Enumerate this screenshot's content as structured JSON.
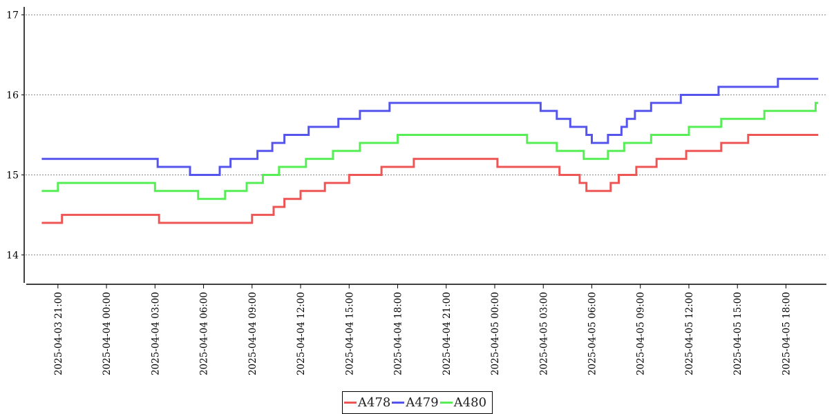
{
  "chart_data": {
    "type": "line",
    "title": "",
    "xlabel": "",
    "ylabel": "",
    "ylim": [
      13.65,
      17.1
    ],
    "xlim": [
      "2025-04-03 19:00",
      "2025-04-05 20:30"
    ],
    "y_ticks": [
      "14",
      "15",
      "16",
      "17"
    ],
    "x_ticks": [
      "2025-04-03 21:00",
      "2025-04-04 00:00",
      "2025-04-04 03:00",
      "2025-04-04 06:00",
      "2025-04-04 09:00",
      "2025-04-04 12:00",
      "2025-04-04 15:00",
      "2025-04-04 18:00",
      "2025-04-04 21:00",
      "2025-04-05 00:00",
      "2025-04-05 03:00",
      "2025-04-05 06:00",
      "2025-04-05 09:00",
      "2025-04-05 12:00",
      "2025-04-05 15:00",
      "2025-04-05 18:00"
    ],
    "grid": "horizontal dotted",
    "legend_position": "bottom-center",
    "series": [
      {
        "name": "A478",
        "color": "#ee5555",
        "points": [
          [
            "2025-04-03 20:00",
            14.4
          ],
          [
            "2025-04-03 21:15",
            14.5
          ],
          [
            "2025-04-04 03:15",
            14.4
          ],
          [
            "2025-04-04 09:00",
            14.5
          ],
          [
            "2025-04-04 10:20",
            14.6
          ],
          [
            "2025-04-04 11:00",
            14.7
          ],
          [
            "2025-04-04 12:00",
            14.8
          ],
          [
            "2025-04-04 13:30",
            14.9
          ],
          [
            "2025-04-04 15:00",
            15.0
          ],
          [
            "2025-04-04 17:00",
            15.1
          ],
          [
            "2025-04-04 19:00",
            15.2
          ],
          [
            "2025-04-05 00:10",
            15.1
          ],
          [
            "2025-04-05 04:00",
            15.0
          ],
          [
            "2025-04-05 05:15",
            14.9
          ],
          [
            "2025-04-05 05:40",
            14.8
          ],
          [
            "2025-04-05 07:10",
            14.9
          ],
          [
            "2025-04-05 07:40",
            15.0
          ],
          [
            "2025-04-05 08:45",
            15.1
          ],
          [
            "2025-04-05 10:00",
            15.2
          ],
          [
            "2025-04-05 11:50",
            15.3
          ],
          [
            "2025-04-05 14:00",
            15.4
          ],
          [
            "2025-04-05 15:40",
            15.5
          ],
          [
            "2025-04-05 20:00",
            15.5
          ]
        ]
      },
      {
        "name": "A479",
        "color": "#5555ee",
        "points": [
          [
            "2025-04-03 20:00",
            15.2
          ],
          [
            "2025-04-04 03:10",
            15.1
          ],
          [
            "2025-04-04 05:10",
            15.0
          ],
          [
            "2025-04-04 07:00",
            15.1
          ],
          [
            "2025-04-04 07:40",
            15.2
          ],
          [
            "2025-04-04 09:20",
            15.3
          ],
          [
            "2025-04-04 10:15",
            15.4
          ],
          [
            "2025-04-04 11:00",
            15.5
          ],
          [
            "2025-04-04 12:30",
            15.6
          ],
          [
            "2025-04-04 14:20",
            15.7
          ],
          [
            "2025-04-04 15:40",
            15.8
          ],
          [
            "2025-04-04 17:30",
            15.9
          ],
          [
            "2025-04-05 02:50",
            15.8
          ],
          [
            "2025-04-05 03:50",
            15.7
          ],
          [
            "2025-04-05 04:40",
            15.6
          ],
          [
            "2025-04-05 05:40",
            15.5
          ],
          [
            "2025-04-05 06:00",
            15.4
          ],
          [
            "2025-04-05 07:00",
            15.5
          ],
          [
            "2025-04-05 07:50",
            15.6
          ],
          [
            "2025-04-05 08:10",
            15.7
          ],
          [
            "2025-04-05 08:40",
            15.8
          ],
          [
            "2025-04-05 09:40",
            15.9
          ],
          [
            "2025-04-05 11:30",
            16.0
          ],
          [
            "2025-04-05 13:50",
            16.1
          ],
          [
            "2025-04-05 17:30",
            16.2
          ],
          [
            "2025-04-05 20:00",
            16.2
          ]
        ]
      },
      {
        "name": "A480",
        "color": "#55ee55",
        "points": [
          [
            "2025-04-03 20:00",
            14.8
          ],
          [
            "2025-04-03 21:00",
            14.9
          ],
          [
            "2025-04-04 03:00",
            14.8
          ],
          [
            "2025-04-04 05:40",
            14.7
          ],
          [
            "2025-04-04 07:20",
            14.8
          ],
          [
            "2025-04-04 08:40",
            14.9
          ],
          [
            "2025-04-04 09:40",
            15.0
          ],
          [
            "2025-04-04 10:40",
            15.1
          ],
          [
            "2025-04-04 12:20",
            15.2
          ],
          [
            "2025-04-04 14:00",
            15.3
          ],
          [
            "2025-04-04 15:40",
            15.4
          ],
          [
            "2025-04-04 18:00",
            15.5
          ],
          [
            "2025-04-05 02:00",
            15.4
          ],
          [
            "2025-04-05 03:50",
            15.3
          ],
          [
            "2025-04-05 05:30",
            15.2
          ],
          [
            "2025-04-05 07:00",
            15.3
          ],
          [
            "2025-04-05 08:00",
            15.4
          ],
          [
            "2025-04-05 09:40",
            15.5
          ],
          [
            "2025-04-05 12:00",
            15.6
          ],
          [
            "2025-04-05 14:00",
            15.7
          ],
          [
            "2025-04-05 16:40",
            15.8
          ],
          [
            "2025-04-05 19:50",
            15.9
          ],
          [
            "2025-04-05 20:00",
            15.9
          ]
        ]
      }
    ]
  }
}
